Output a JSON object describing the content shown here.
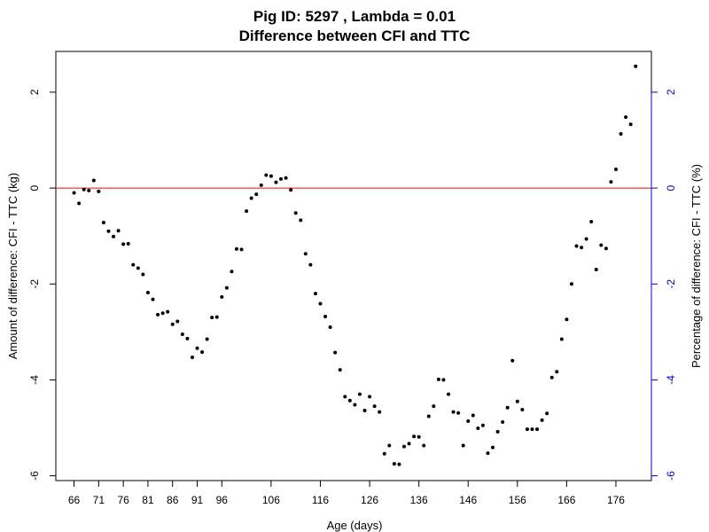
{
  "chart_data": {
    "type": "scatter",
    "title": "Pig ID: 5297 , Lambda = 0.01",
    "subtitle": "Difference between CFI and TTC",
    "xlabel": "Age (days)",
    "ylabel": "Amount of difference: CFI - TTC (kg)",
    "ylabel_right": "Percentage of difference: CFI - TTC (%)",
    "xlim": [
      62.3,
      183.2
    ],
    "ylim": [
      -6.1,
      2.85
    ],
    "x_ticks": [
      66,
      71,
      76,
      81,
      86,
      91,
      96,
      106,
      116,
      126,
      136,
      146,
      156,
      166,
      176
    ],
    "y_ticks": [
      -6,
      -4,
      -2,
      0,
      2
    ],
    "y_ticks_right": [
      -6,
      -4,
      -2,
      0,
      2
    ],
    "reference_line": {
      "y": 0,
      "color": "#ff0000"
    },
    "colors": {
      "points": "#000000",
      "right_axis": "#0000cc",
      "reference": "#ff0000"
    },
    "grid": false,
    "legend": "none",
    "x": [
      66,
      67,
      68,
      69,
      70,
      71,
      72,
      73,
      74,
      75,
      76,
      77,
      78,
      79,
      80,
      81,
      82,
      83,
      84,
      85,
      86,
      87,
      88,
      89,
      90,
      91,
      92,
      93,
      94,
      95,
      96,
      97,
      98,
      99,
      100,
      101,
      102,
      103,
      104,
      105,
      106,
      107,
      108,
      109,
      110,
      111,
      112,
      113,
      114,
      115,
      116,
      117,
      118,
      119,
      120,
      121,
      122,
      123,
      124,
      125,
      126,
      127,
      128,
      129,
      130,
      131,
      132,
      133,
      134,
      135,
      136,
      137,
      138,
      139,
      140,
      141,
      142,
      143,
      144,
      145,
      146,
      147,
      148,
      149,
      150,
      151,
      152,
      153,
      154,
      155,
      156,
      157,
      158,
      159,
      160,
      161,
      162,
      163,
      164,
      165,
      166,
      167,
      168,
      169,
      170,
      171,
      172,
      173,
      174,
      175,
      176,
      177,
      178,
      179,
      180
    ],
    "y": [
      -0.1,
      -0.32,
      -0.03,
      -0.05,
      0.16,
      -0.07,
      -0.72,
      -0.9,
      -1.01,
      -0.89,
      -1.17,
      -1.16,
      -1.6,
      -1.67,
      -1.8,
      -2.18,
      -2.32,
      -2.64,
      -2.61,
      -2.58,
      -2.84,
      -2.78,
      -3.05,
      -3.14,
      -3.53,
      -3.34,
      -3.42,
      -3.15,
      -2.7,
      -2.69,
      -2.27,
      -2.08,
      -1.74,
      -1.27,
      -1.28,
      -0.48,
      -0.21,
      -0.13,
      0.06,
      0.27,
      0.25,
      0.12,
      0.19,
      0.21,
      -0.04,
      -0.52,
      -0.67,
      -1.37,
      -1.6,
      -2.2,
      -2.41,
      -2.68,
      -2.9,
      -3.43,
      -3.79,
      -4.35,
      -4.43,
      -4.52,
      -4.3,
      -4.64,
      -4.35,
      -4.55,
      -4.67,
      -5.54,
      -5.37,
      -5.75,
      -5.76,
      -5.39,
      -5.33,
      -5.18,
      -5.19,
      -5.37,
      -4.76,
      -4.55,
      -3.99,
      -4.0,
      -4.3,
      -4.67,
      -4.69,
      -5.37,
      -4.86,
      -4.74,
      -5.01,
      -4.95,
      -5.53,
      -5.41,
      -5.08,
      -4.88,
      -4.58,
      -3.6,
      -4.45,
      -4.62,
      -5.03,
      -5.03,
      -5.03,
      -4.84,
      -4.7,
      -3.95,
      -3.83,
      -3.15,
      -2.74,
      -2.0,
      -1.21,
      -1.24,
      -1.06,
      -0.7,
      -1.7,
      -1.19,
      -1.26,
      0.13,
      0.39,
      1.13,
      1.48,
      1.33,
      2.54
    ]
  }
}
